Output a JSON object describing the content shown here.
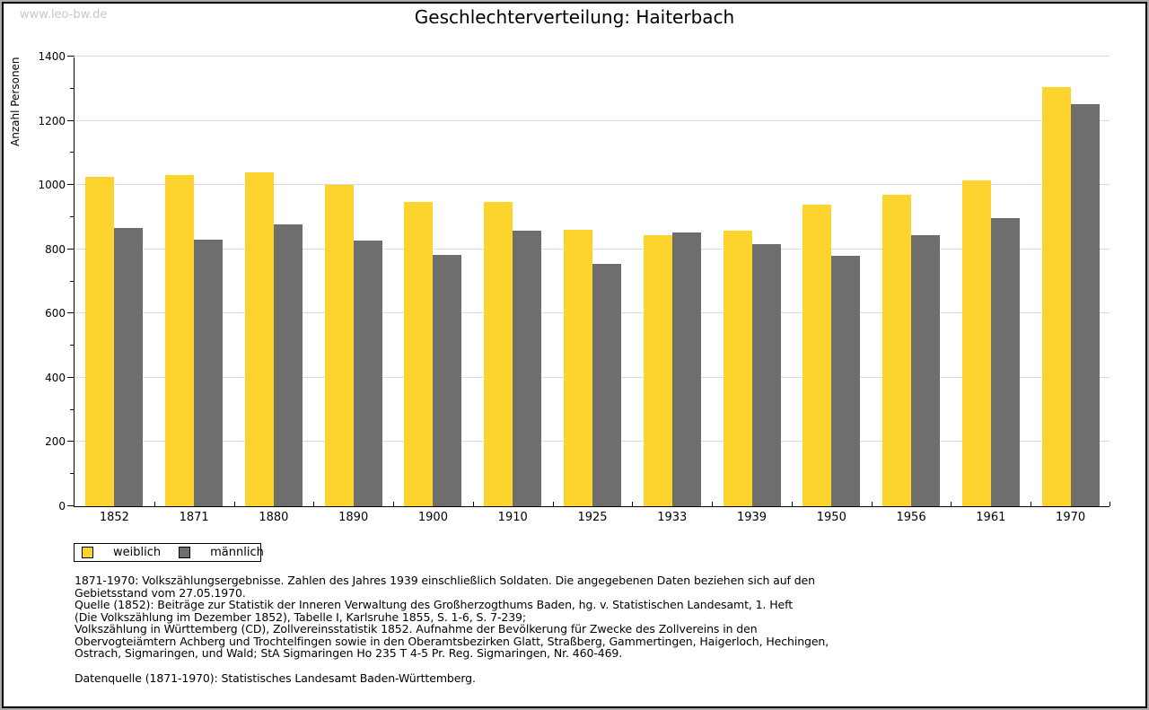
{
  "watermark": "www.leo-bw.de",
  "title": "Geschlechterverteilung: Haiterbach",
  "chart_data": {
    "type": "bar",
    "title": "Geschlechterverteilung: Haiterbach",
    "xlabel": "",
    "ylabel": "Anzahl Personen",
    "ylim": [
      0,
      1400
    ],
    "ytick_step": 200,
    "ytick_minor_step": 100,
    "grid": true,
    "legend_position": "bottom-left",
    "categories": [
      "1852",
      "1871",
      "1880",
      "1890",
      "1900",
      "1910",
      "1925",
      "1933",
      "1939",
      "1950",
      "1956",
      "1961",
      "1970"
    ],
    "series": [
      {
        "name": "weiblich",
        "color": "#fcd42d",
        "values": [
          1025,
          1030,
          1039,
          1000,
          948,
          948,
          860,
          845,
          857,
          939,
          970,
          1014,
          1305
        ]
      },
      {
        "name": "männlich",
        "color": "#6e6e6e",
        "values": [
          865,
          830,
          877,
          827,
          782,
          857,
          754,
          851,
          815,
          779,
          843,
          896,
          1251
        ]
      }
    ]
  },
  "legend": {
    "items": [
      {
        "label": "weiblich",
        "color": "#fcd42d"
      },
      {
        "label": "männlich",
        "color": "#6e6e6e"
      }
    ]
  },
  "footnotes": {
    "lines": [
      "1871-1970: Volkszählungsergebnisse. Zahlen des Jahres 1939 einschließlich Soldaten. Die angegebenen Daten beziehen sich auf den",
      "Gebietsstand vom 27.05.1970.",
      "Quelle (1852): Beiträge zur Statistik der Inneren Verwaltung des Großherzogthums Baden, hg. v. Statistischen Landesamt, 1. Heft",
      "(Die Volkszählung im Dezember 1852), Tabelle I, Karlsruhe 1855, S. 1-6, S. 7-239;",
      "Volkszählung in Württemberg (CD), Zollvereinsstatistik 1852. Aufnahme der Bevölkerung für Zwecke des Zollvereins in den",
      "Obervogteiämtern Achberg und Trochtelfingen sowie in den Oberamtsbezirken Glatt, Straßberg, Gammertingen, Haigerloch, Hechingen,",
      "Ostrach, Sigmaringen, und Wald; StA Sigmaringen Ho 235 T 4-5 Pr. Reg. Sigmaringen, Nr. 460-469."
    ],
    "datasource": "Datenquelle (1871-1970): Statistisches Landesamt Baden-Württemberg."
  },
  "colors": {
    "weiblich": "#fcd42d",
    "männlich": "#6e6e6e",
    "gridline": "#dcdcdc",
    "watermark": "#c7c7c7",
    "frame_border": "#000000",
    "frame_shadow": "#ababab"
  }
}
